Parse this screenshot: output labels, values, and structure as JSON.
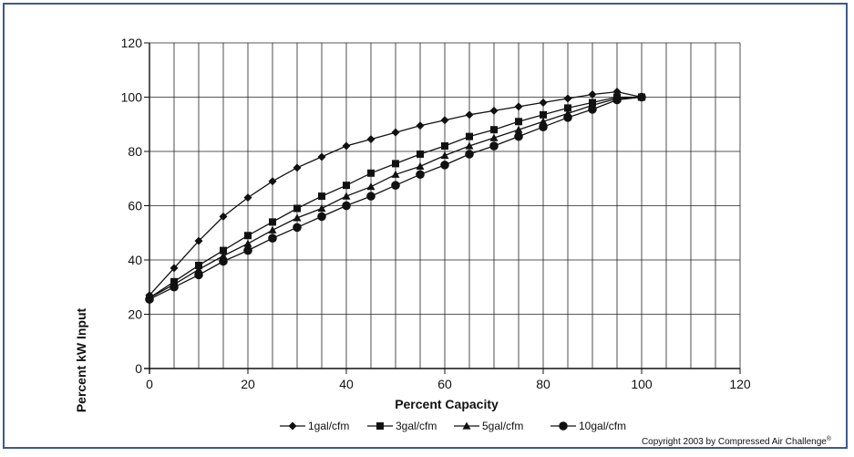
{
  "chart_data": {
    "type": "line",
    "title": "",
    "xlabel": "Percent Capacity",
    "ylabel": "Percent kW Input",
    "xlim": [
      0,
      120
    ],
    "ylim": [
      0,
      120
    ],
    "xticks": [
      0,
      20,
      40,
      60,
      80,
      100,
      120
    ],
    "yticks": [
      0,
      20,
      40,
      60,
      80,
      100,
      120
    ],
    "grid": true,
    "legend_position": "bottom",
    "x": [
      0,
      5,
      10,
      15,
      20,
      25,
      30,
      35,
      40,
      45,
      50,
      55,
      60,
      65,
      70,
      75,
      80,
      85,
      90,
      95,
      100
    ],
    "series": [
      {
        "name": "1gal/cfm",
        "marker": "diamond",
        "values": [
          27,
          37,
          47,
          56,
          63,
          69,
          74,
          78,
          82,
          84.5,
          87,
          89.5,
          91.5,
          93.5,
          95,
          96.5,
          98,
          99.5,
          101,
          102,
          100
        ]
      },
      {
        "name": "3gal/cfm",
        "marker": "square",
        "values": [
          26,
          32,
          38,
          43.5,
          49,
          54,
          59,
          63.5,
          67.5,
          72,
          75.5,
          79,
          82,
          85.5,
          88,
          91,
          93.5,
          96,
          98,
          100,
          100
        ]
      },
      {
        "name": "5gal/cfm",
        "marker": "triangle",
        "values": [
          26,
          31,
          36.5,
          41.5,
          46,
          51,
          55.5,
          59,
          63.5,
          67,
          71.5,
          74.5,
          78.5,
          82,
          85,
          88,
          91,
          94,
          97,
          99.5,
          100
        ]
      },
      {
        "name": "10gal/cfm",
        "marker": "circle",
        "values": [
          25.5,
          30,
          34.5,
          39.5,
          43.5,
          48,
          52,
          56,
          60,
          63.5,
          67.5,
          71.5,
          75,
          79,
          82,
          85.5,
          89,
          92.5,
          95.5,
          99,
          100
        ]
      }
    ]
  },
  "copyright": {
    "text": "Copyright 2003 by Compressed Air Challenge",
    "mark": "®"
  }
}
